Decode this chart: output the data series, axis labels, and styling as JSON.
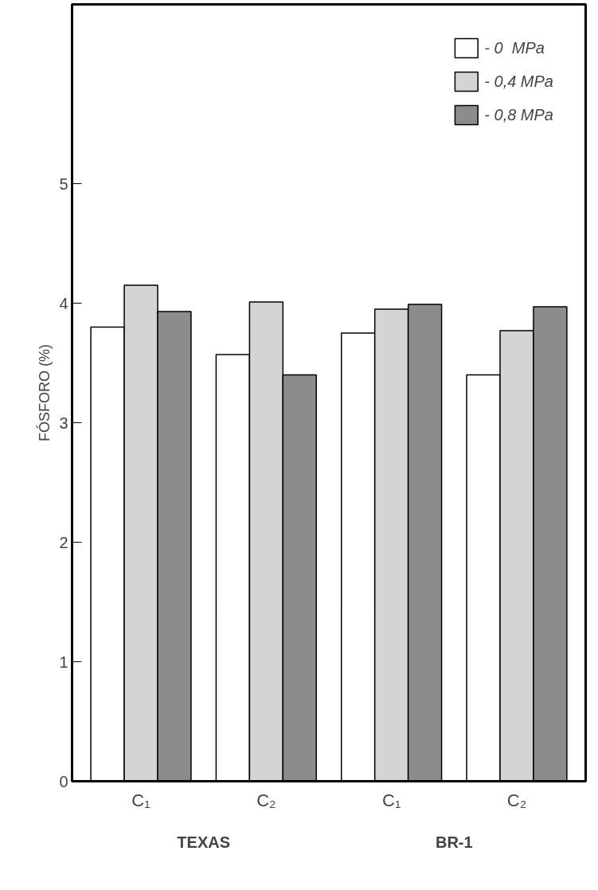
{
  "chart_data": {
    "type": "bar",
    "ylabel": "FÓSFORO (%)",
    "categories": [
      "C₁",
      "C₂",
      "C₁",
      "C₂"
    ],
    "series": [
      {
        "name": "- 0  MPa",
        "color": "#ffffff",
        "values": [
          3.8,
          3.57,
          3.75,
          3.4
        ]
      },
      {
        "name": "- 0,4 MPa",
        "color": "#d4d4d4",
        "values": [
          4.15,
          4.01,
          3.95,
          3.77
        ]
      },
      {
        "name": "- 0,8 MPa",
        "color": "#8c8c8c",
        "values": [
          3.93,
          3.4,
          3.99,
          3.97
        ]
      }
    ],
    "ylim": [
      0,
      6.5
    ],
    "yticks": [
      0,
      1,
      2,
      3,
      4,
      5
    ],
    "annotations": [
      "TEXAS",
      "BR-1"
    ],
    "legend": "top right",
    "grid": false
  }
}
